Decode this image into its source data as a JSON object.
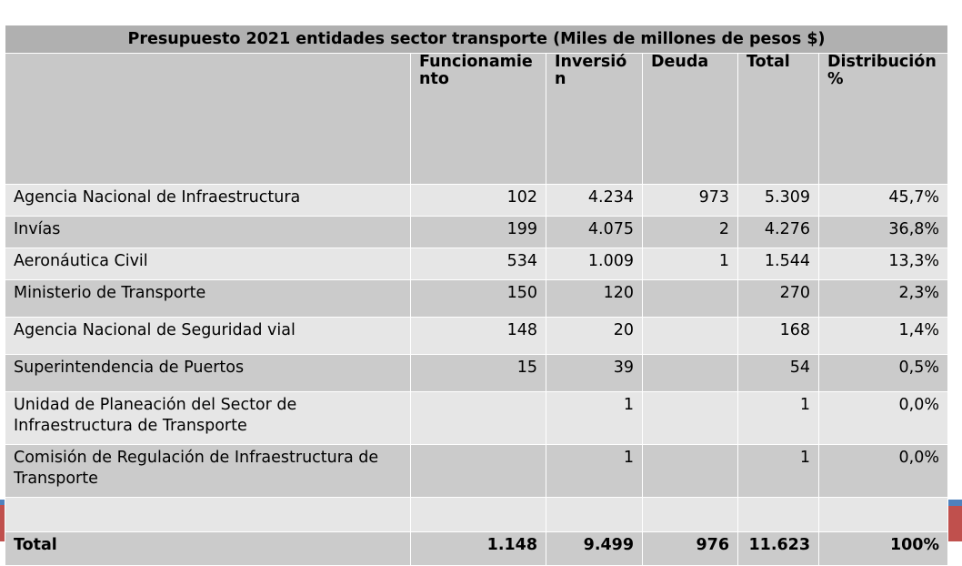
{
  "table": {
    "title": "Presupuesto 2021 entidades sector transporte (Miles de millones de pesos $)",
    "headers": [
      "",
      "Funcionamiento",
      "Inversión",
      "Deuda",
      "Total",
      "Distribución %"
    ],
    "rows": [
      {
        "entity": "Agencia Nacional de Infraestructura",
        "funcionamiento": "102",
        "inversion": "4.234",
        "deuda": "973",
        "total": "5.309",
        "distribucion": "45,7%"
      },
      {
        "entity": "Invías",
        "funcionamiento": "199",
        "inversion": "4.075",
        "deuda": "2",
        "total": "4.276",
        "distribucion": "36,8%"
      },
      {
        "entity": "Aeronáutica Civil",
        "funcionamiento": "534",
        "inversion": "1.009",
        "deuda": "1",
        "total": "1.544",
        "distribucion": "13,3%"
      },
      {
        "entity": "Ministerio de Transporte",
        "funcionamiento": "150",
        "inversion": "120",
        "deuda": "",
        "total": "270",
        "distribucion": "2,3%"
      },
      {
        "entity": "Agencia Nacional de Seguridad vial",
        "funcionamiento": "148",
        "inversion": "20",
        "deuda": "",
        "total": "168",
        "distribucion": "1,4%"
      },
      {
        "entity": "Superintendencia de Puertos",
        "funcionamiento": "15",
        "inversion": "39",
        "deuda": "",
        "total": "54",
        "distribucion": "0,5%"
      },
      {
        "entity": "Unidad de Planeación del Sector de Infraestructura de Transporte",
        "funcionamiento": "",
        "inversion": "1",
        "deuda": "",
        "total": "1",
        "distribucion": "0,0%"
      },
      {
        "entity": "Comisión de Regulación de Infraestructura de Transporte",
        "funcionamiento": "",
        "inversion": "1",
        "deuda": "",
        "total": "1",
        "distribucion": "0,0%"
      }
    ],
    "total": {
      "entity": "Total",
      "funcionamiento": "1.148",
      "inversion": "9.499",
      "deuda": "976",
      "total": "11.623",
      "distribucion": "100%"
    }
  }
}
